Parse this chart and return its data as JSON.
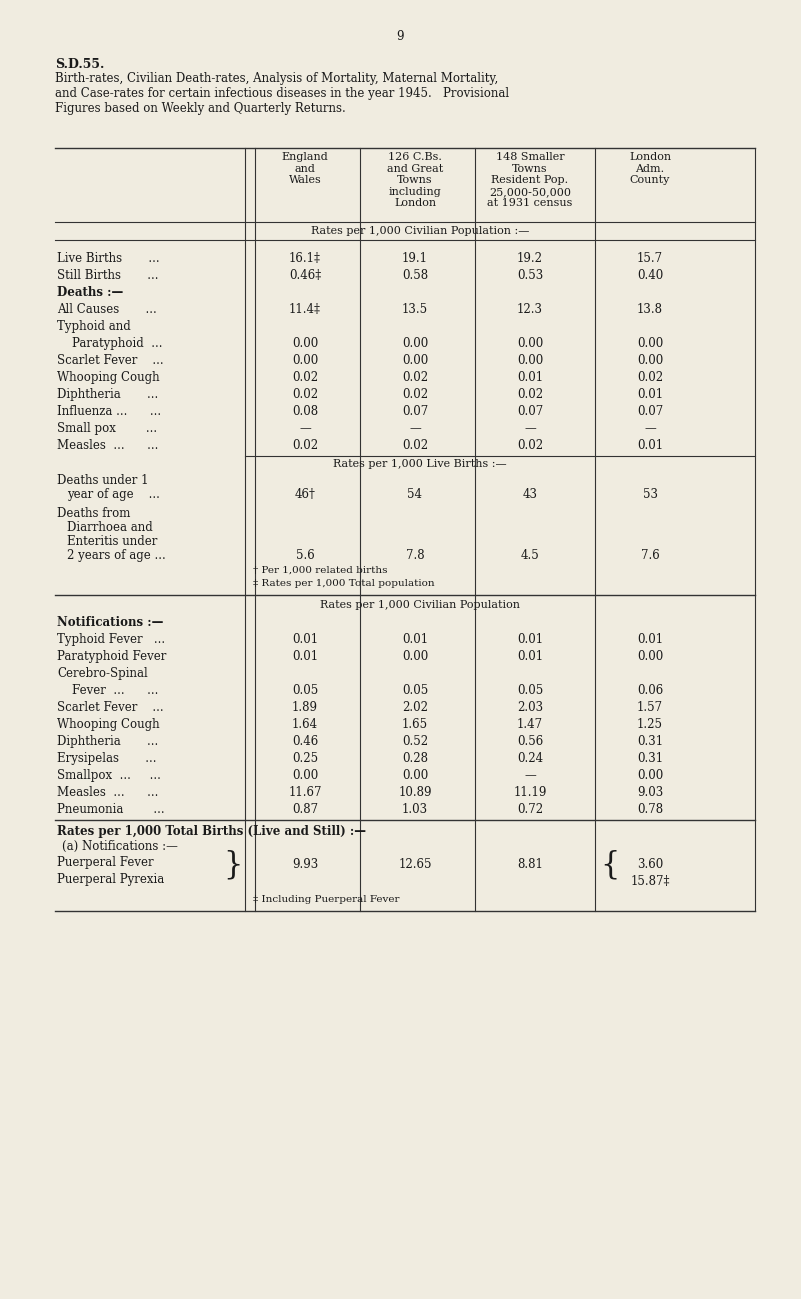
{
  "page_number": "9",
  "title_bold": "S.D.55.",
  "title_text": "Birth-rates, Civilian Death-rates, Analysis of Mortality, Maternal Mortality,\nand Case-rates for certain infectious diseases in the year 1945.   Provisional\nFigures based on Weekly and Quarterly Returns.",
  "bg_color": "#f0ece0",
  "text_color": "#1a1a1a",
  "col_headers": [
    "England\nand\nWales",
    "126 C.Bs.\nand Great\nTowns\nincluding\nLondon",
    "148 Smaller\nTowns\nResident Pop.\n25,000-50,000\nat 1931 census",
    "London\nAdm.\nCounty"
  ],
  "subheader1": "Rates per 1,000 Civilian Population :—",
  "rows_section1": [
    [
      "Live Births       ...",
      "16.1‡",
      "19.1",
      "19.2",
      "15.7"
    ],
    [
      "Still Births       ...",
      "0.46‡",
      "0.58",
      "0.53",
      "0.40"
    ],
    [
      "Deaths :—",
      "",
      "",
      "",
      ""
    ],
    [
      "All Causes       ...",
      "11.4‡",
      "13.5",
      "12.3",
      "13.8"
    ],
    [
      "Typhoid and",
      "",
      "",
      "",
      ""
    ],
    [
      "    Paratyphoid  ...",
      "0.00",
      "0.00",
      "0.00",
      "0.00"
    ],
    [
      "Scarlet Fever    ...",
      "0.00",
      "0.00",
      "0.00",
      "0.00"
    ],
    [
      "Whooping Cough",
      "0.02",
      "0.02",
      "0.01",
      "0.02"
    ],
    [
      "Diphtheria       ...",
      "0.02",
      "0.02",
      "0.02",
      "0.01"
    ],
    [
      "Influenza ...      ...",
      "0.08",
      "0.07",
      "0.07",
      "0.07"
    ],
    [
      "Small pox        ...",
      "—",
      "—",
      "—",
      "—"
    ],
    [
      "Measles  ...      ...",
      "0.02",
      "0.02",
      "0.02",
      "0.01"
    ]
  ],
  "subheader2": "Rates per 1,000 Live Births :—",
  "rows_section2": [
    [
      "Deaths under 1\n    year of age    ...",
      "46†",
      "54",
      "43",
      "53"
    ],
    [
      "Deaths from\n    Diarrhoea and\n    Enteritis under\n    2 years of age ...",
      "5.6",
      "7.8",
      "4.5",
      "7.6"
    ]
  ],
  "footnote_section2": [
    "† Per 1,000 related births",
    "‡ Rates per 1,000 Total population"
  ],
  "subheader3": "Rates per 1,000 Civilian Population",
  "notif_bold": "Notifications :—",
  "rows_section3": [
    [
      "Typhoid Fever   ...",
      "0.01",
      "0.01",
      "0.01",
      "0.01"
    ],
    [
      "Paratyphoid Fever",
      "0.01",
      "0.00",
      "0.01",
      "0.00"
    ],
    [
      "Cerebro-Spinal",
      "",
      "",
      "",
      ""
    ],
    [
      "    Fever  ...      ...",
      "0.05",
      "0.05",
      "0.05",
      "0.06"
    ],
    [
      "Scarlet Fever    ...",
      "1.89",
      "2.02",
      "2.03",
      "1.57"
    ],
    [
      "Whooping Cough",
      "1.64",
      "1.65",
      "1.47",
      "1.25"
    ],
    [
      "Diphtheria       ...",
      "0.46",
      "0.52",
      "0.56",
      "0.31"
    ],
    [
      "Erysipelas       ...",
      "0.25",
      "0.28",
      "0.24",
      "0.31"
    ],
    [
      "Smallpox  ...     ...",
      "0.00",
      "0.00",
      "—",
      "0.00"
    ],
    [
      "Measles  ...      ...",
      "11.67",
      "10.89",
      "11.19",
      "9.03"
    ],
    [
      "Pneumonia        ...",
      "0.87",
      "1.03",
      "0.72",
      "0.78"
    ]
  ],
  "subheader4": "Rates per 1,000 Total Births (Live and Still) :—",
  "subheader4b": "(a) Notifications :—",
  "rows_section4_label1": "Puerperal Fever",
  "rows_section4_label2": "Puerperal Pyrexia",
  "rows_section4_brace_left": "}",
  "rows_section4_val1": "9.93",
  "rows_section4_val2": "12.65",
  "rows_section4_val3": "8.81",
  "rows_section4_brace_right": "{",
  "rows_section4_val4a": "3.60",
  "rows_section4_val4b": "15.87‡",
  "rows_section4_footnote": "‡ Including Puerperal Fever"
}
